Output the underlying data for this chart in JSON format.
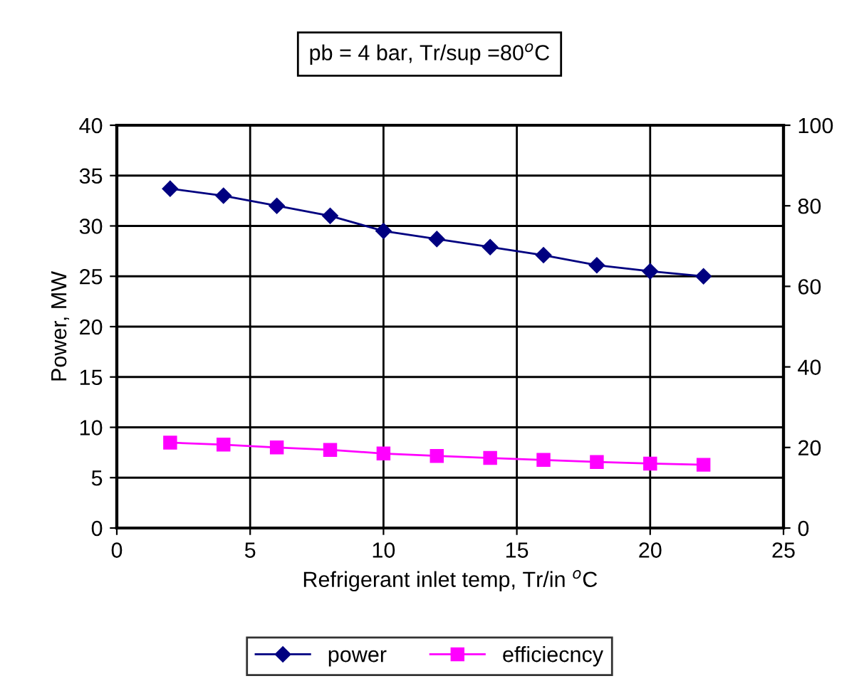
{
  "chart_data": {
    "type": "line",
    "title": "pb = 4 bar, Tr/sup =80$^{o}$C",
    "xlabel": "Refrigerant inlet temp, Tr/in $^{o}$C",
    "ylabel": "Power, MW",
    "x": [
      2,
      4,
      6,
      8,
      10,
      12,
      14,
      16,
      18,
      20,
      22
    ],
    "series": [
      {
        "name": "power",
        "color": "#000080",
        "marker": "diamond",
        "values": [
          33.7,
          33.0,
          32.0,
          31.0,
          29.5,
          28.7,
          27.9,
          27.1,
          26.1,
          25.5,
          25.0
        ]
      },
      {
        "name": "efficiecncy",
        "color": "#ff00ff",
        "marker": "square",
        "axis": "y2",
        "values": [
          21.2,
          20.7,
          20.0,
          19.4,
          18.5,
          17.9,
          17.4,
          16.9,
          16.4,
          16.0,
          15.7
        ]
      }
    ],
    "xlim": [
      0,
      25
    ],
    "xticks": [
      0,
      5,
      10,
      15,
      20,
      25
    ],
    "ylim": [
      0,
      40
    ],
    "yticks": [
      0,
      5,
      10,
      15,
      20,
      25,
      30,
      35,
      40
    ],
    "y2lim": [
      0,
      100
    ],
    "y2ticks": [
      0,
      20,
      40,
      60,
      80,
      100
    ],
    "grid": true,
    "legend": "bottom",
    "line_style": "solid"
  }
}
